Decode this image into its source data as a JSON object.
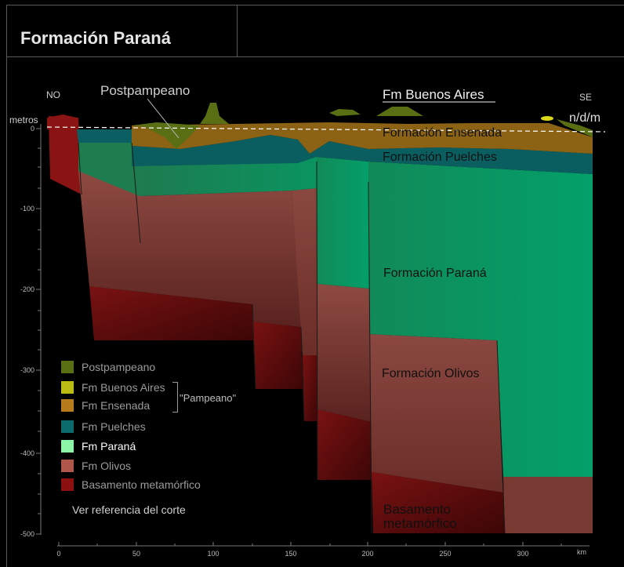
{
  "title": "Formación Paraná",
  "labels": {
    "no": "NO",
    "se": "SE",
    "ndm": "n/d/m",
    "metros": "metros",
    "km": "km",
    "postpampeano": "Postpampeano",
    "fm_buenos_aires": "Fm  Buenos Aires",
    "ensenada": "Formación Ensenada",
    "puelches": "Formación Puelches",
    "parana": "Formación Paraná",
    "olivos": "Formación Olivos",
    "basamento_1": "Basamento",
    "basamento_2": "metamórfico"
  },
  "y_ticks": [
    "0",
    "-100",
    "-200",
    "-300",
    "-400",
    "-500"
  ],
  "x_ticks": [
    "0",
    "50",
    "100",
    "150",
    "200",
    "250",
    "300"
  ],
  "legend": {
    "items": [
      {
        "label": "Postpampeano",
        "color": "#5a6e14"
      },
      {
        "label": "Fm Buenos Aires",
        "color": "#bcbd14"
      },
      {
        "label": "Fm Ensenada",
        "color": "#b67b1c"
      },
      {
        "label": "Fm Puelches",
        "color": "#0b6a6a"
      },
      {
        "label": "Fm Paraná",
        "color": "#8cf5a8"
      },
      {
        "label": "Fm Olivos",
        "color": "#b0574c"
      },
      {
        "label": "Basamento metamórfico",
        "color": "#8c1010"
      }
    ],
    "group_label": "\"Pampeano\""
  },
  "reference_link": "Ver referencia del corte"
}
